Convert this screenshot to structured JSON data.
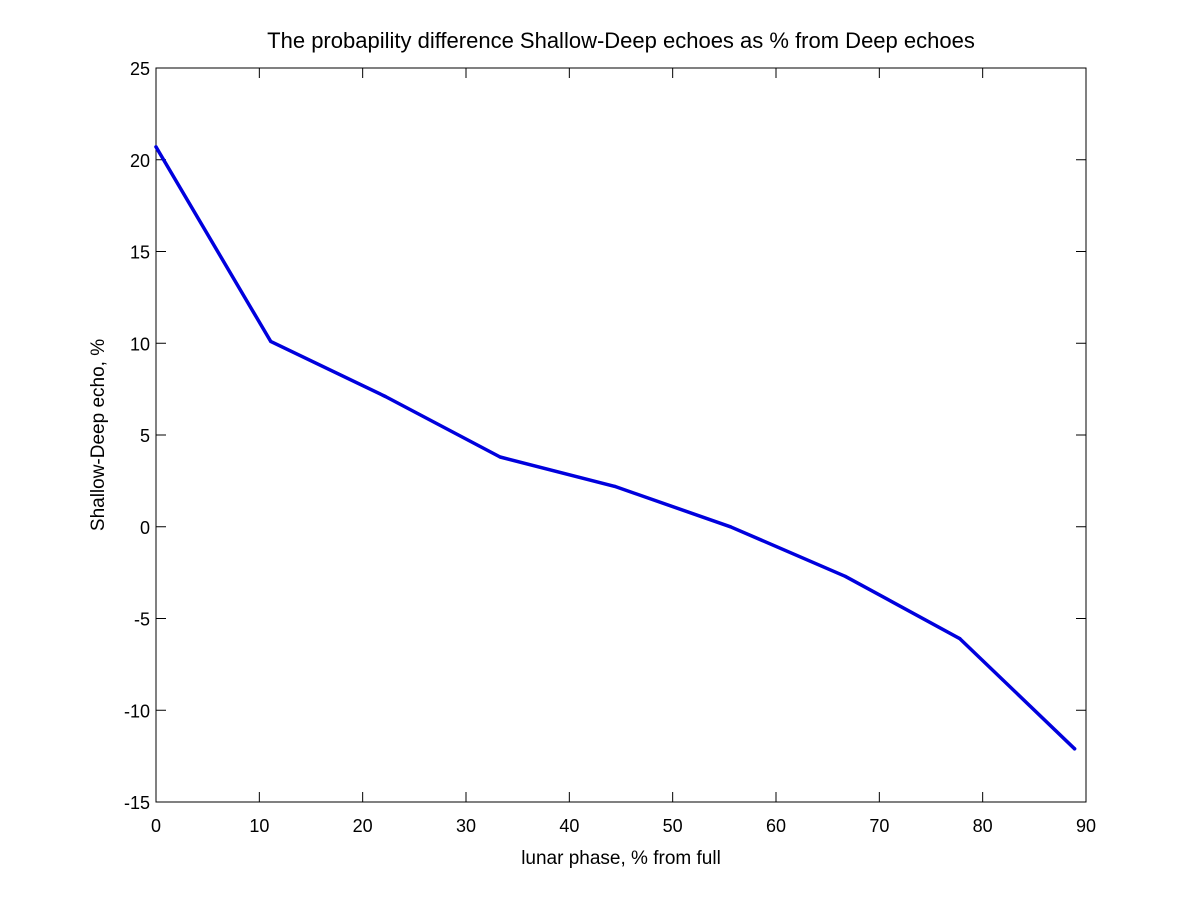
{
  "chart_data": {
    "type": "line",
    "title": "The probapility difference Shallow-Deep echoes as % from Deep echoes",
    "xlabel": "lunar phase, % from full",
    "ylabel": "Shallow-Deep echo, %",
    "xlim": [
      0,
      90
    ],
    "ylim": [
      -15,
      25
    ],
    "xticks": [
      0,
      10,
      20,
      30,
      40,
      50,
      60,
      70,
      80,
      90
    ],
    "yticks": [
      -15,
      -10,
      -5,
      0,
      5,
      10,
      15,
      20,
      25
    ],
    "grid": false,
    "series": [
      {
        "name": "Shallow-Deep echo",
        "color": "#0000dd",
        "x": [
          0,
          11.1,
          22.2,
          33.3,
          44.4,
          55.6,
          66.7,
          77.8,
          88.9
        ],
        "y": [
          20.7,
          10.1,
          7.1,
          3.8,
          2.2,
          0.0,
          -2.7,
          -6.1,
          -12.1
        ]
      }
    ]
  }
}
